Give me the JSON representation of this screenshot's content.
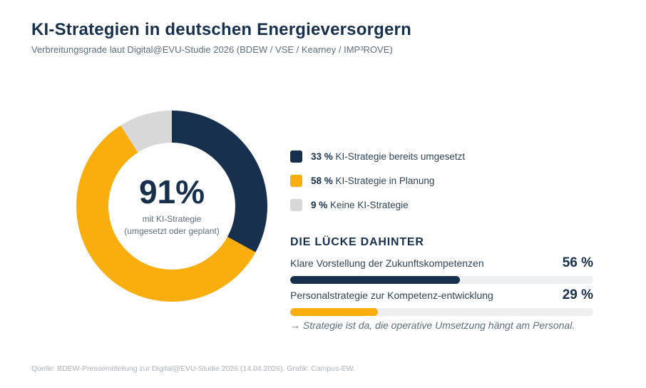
{
  "header": {
    "title": "KI-Strategien in deutschen Energieversorgern",
    "subtitle": "Verbreitungsgrade laut Digital@EVU-Studie 2026 (BDEW / VSE / Kearney / IMP³ROVE)"
  },
  "colors": {
    "navy": "#17304D",
    "amber": "#FAAE0E",
    "gray": "#D8D8D8",
    "track_gray": "#EDEFF1",
    "slate_text": "#5D6F80",
    "source_text": "#A9B3BD"
  },
  "donut": {
    "center_value": "91%",
    "center_line1": "mit KI-Strategie",
    "center_line2": "(umgesetzt oder geplant)"
  },
  "legend": {
    "items": [
      {
        "pct": "33 %",
        "label": "KI-Strategie bereits umgesetzt",
        "color": "#17304D"
      },
      {
        "pct": "58 %",
        "label": "KI-Strategie in Planung",
        "color": "#FAAE0E"
      },
      {
        "pct": "9 %",
        "label": "Keine KI-Strategie",
        "color": "#D8D8D8"
      }
    ]
  },
  "gap_section": {
    "heading": "DIE LÜCKE DAHINTER",
    "bars": [
      {
        "label": "Klare Vorstellung der Zukunftskompetenzen",
        "display": "56 %"
      },
      {
        "label": "Personalstrategie zur Kompetenz-entwicklung",
        "display": "29 %"
      }
    ],
    "footnote": "→ Strategie ist da, die operative Umsetzung hängt am Personal."
  },
  "source": "Quelle: BDEW-Pressemitteilung zur Digital@EVU-Studie 2026 (14.04.2026). Grafik: Campus-EW.",
  "chart_data": [
    {
      "type": "pie",
      "subtype": "donut",
      "title": "KI-Strategien in deutschen Energieversorgern",
      "categories": [
        "KI-Strategie bereits umgesetzt",
        "KI-Strategie in Planung",
        "Keine KI-Strategie"
      ],
      "values": [
        33,
        58,
        9
      ],
      "colors": [
        "#17304D",
        "#FAAE0E",
        "#D8D8D8"
      ],
      "center_label": "91% mit KI-Strategie (umgesetzt oder geplant)",
      "start_angle_deg": 0,
      "direction": "clockwise",
      "legend_position": "right"
    },
    {
      "type": "bar",
      "orientation": "horizontal",
      "title": "DIE LÜCKE DAHINTER",
      "categories": [
        "Klare Vorstellung der Zukunftskompetenzen",
        "Personalstrategie zur Kompetenz-entwicklung"
      ],
      "values": [
        56,
        29
      ],
      "colors": [
        "#17304D",
        "#FAAE0E"
      ],
      "xlim": [
        0,
        100
      ],
      "grid": false,
      "annotation": "→ Strategie ist da, die operative Umsetzung hängt am Personal."
    }
  ]
}
